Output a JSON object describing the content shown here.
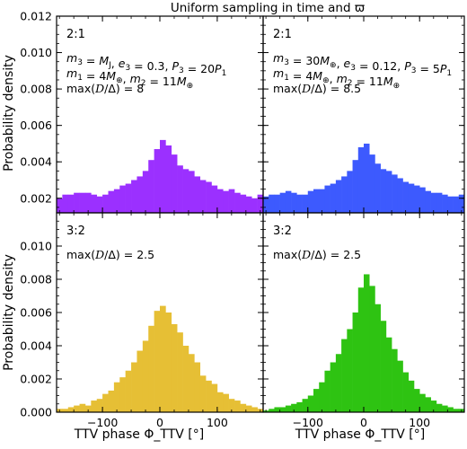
{
  "figure_title": "Uniform sampling in time and ϖ",
  "shared_ylabel": "Probability density",
  "shared_xlabel": "TTV phase Φ_TTV [°]",
  "bar_colors": {
    "purple": "#9b30ff",
    "blue": "#3d5afe",
    "gold": "#e6bf35",
    "green": "#2ec312"
  },
  "chart_data": [
    {
      "type": "bar",
      "panel": "top-left",
      "resonance": "2:1",
      "annotation_lines": [
        "m3 = MJ, e3 = 0.3, P3 = 20P1",
        "m1 = 4M⊕, m2 = 11M⊕",
        "max(D/Δ) = 8"
      ],
      "color": "#9b30ff",
      "bin_edges_deg": [
        -180,
        180
      ],
      "n_bins": 36,
      "values": [
        0.002,
        0.0022,
        0.0022,
        0.0023,
        0.0023,
        0.0023,
        0.0022,
        0.0021,
        0.0022,
        0.0024,
        0.0025,
        0.0027,
        0.0028,
        0.003,
        0.0032,
        0.0035,
        0.0041,
        0.0047,
        0.0052,
        0.0049,
        0.0044,
        0.0038,
        0.0036,
        0.0035,
        0.0032,
        0.003,
        0.0029,
        0.0027,
        0.0025,
        0.0024,
        0.0025,
        0.0023,
        0.0022,
        0.0021,
        0.002,
        0.0022
      ],
      "xlim": [
        -180,
        180
      ],
      "ylim": [
        0.0012,
        0.012
      ],
      "yticks": [
        0.002,
        0.004,
        0.006,
        0.008,
        0.01,
        0.012
      ],
      "ytick_labels": [
        "0.002",
        "0.004",
        "0.006",
        "0.008",
        "0.010",
        "0.012"
      ],
      "xticks": [
        -100,
        0,
        100
      ],
      "xtick_labels": []
    },
    {
      "type": "bar",
      "panel": "top-right",
      "resonance": "2:1",
      "annotation_lines": [
        "m3 = 30M⊕, e3 = 0.12, P3 = 5P1",
        "m1 = 4M⊕, m2 = 11M⊕",
        "max(D/Δ) = 8.5"
      ],
      "color": "#3d5afe",
      "bin_edges_deg": [
        -180,
        180
      ],
      "n_bins": 36,
      "values": [
        0.0021,
        0.0022,
        0.0022,
        0.0023,
        0.0024,
        0.0023,
        0.0022,
        0.0022,
        0.0024,
        0.0025,
        0.0025,
        0.0027,
        0.0028,
        0.003,
        0.0032,
        0.0035,
        0.0041,
        0.0048,
        0.005,
        0.0044,
        0.0039,
        0.0036,
        0.0035,
        0.0033,
        0.0031,
        0.0029,
        0.0028,
        0.0027,
        0.0026,
        0.0024,
        0.0023,
        0.0023,
        0.0022,
        0.0021,
        0.0021,
        0.0022
      ],
      "xlim": [
        -180,
        180
      ],
      "ylim": [
        0.0012,
        0.012
      ],
      "yticks": [
        0.002,
        0.004,
        0.006,
        0.008,
        0.01,
        0.012
      ],
      "ytick_labels": [],
      "xticks": [
        -100,
        0,
        100
      ],
      "xtick_labels": []
    },
    {
      "type": "bar",
      "panel": "bottom-left",
      "resonance": "3:2",
      "annotation_lines": [
        "max(D/Δ) = 2.5"
      ],
      "color": "#e6bf35",
      "bin_edges_deg": [
        -180,
        180
      ],
      "n_bins": 36,
      "values": [
        0.0002,
        0.0002,
        0.0003,
        0.0004,
        0.0005,
        0.0004,
        0.0007,
        0.0008,
        0.0011,
        0.0013,
        0.0018,
        0.0021,
        0.0025,
        0.003,
        0.0037,
        0.0043,
        0.0052,
        0.0061,
        0.0064,
        0.006,
        0.0053,
        0.0048,
        0.004,
        0.0035,
        0.003,
        0.0022,
        0.0019,
        0.0017,
        0.0012,
        0.0011,
        0.0008,
        0.0007,
        0.0005,
        0.0004,
        0.0003,
        0.0002
      ],
      "xlim": [
        -180,
        180
      ],
      "ylim": [
        0,
        0.012
      ],
      "yticks": [
        0.0,
        0.002,
        0.004,
        0.006,
        0.008,
        0.01
      ],
      "ytick_labels": [
        "0.000",
        "0.002",
        "0.004",
        "0.006",
        "0.008",
        "0.010"
      ],
      "xticks": [
        -100,
        0,
        100
      ],
      "xtick_labels": [
        "−100",
        "0",
        "100"
      ]
    },
    {
      "type": "bar",
      "panel": "bottom-right",
      "resonance": "3:2",
      "annotation_lines": [
        "max(D/Δ) = 2.5"
      ],
      "color": "#2ec312",
      "bin_edges_deg": [
        -180,
        180
      ],
      "n_bins": 36,
      "values": [
        0.0001,
        0.0002,
        0.0003,
        0.0003,
        0.0004,
        0.0005,
        0.0006,
        0.0008,
        0.001,
        0.0014,
        0.0018,
        0.0025,
        0.003,
        0.0035,
        0.0044,
        0.005,
        0.006,
        0.0075,
        0.0083,
        0.0076,
        0.0065,
        0.0055,
        0.0045,
        0.0038,
        0.0031,
        0.0024,
        0.0019,
        0.0014,
        0.0011,
        0.0009,
        0.0007,
        0.0005,
        0.0004,
        0.0003,
        0.0002,
        0.0002
      ],
      "xlim": [
        -180,
        180
      ],
      "ylim": [
        0,
        0.012
      ],
      "yticks": [
        0.0,
        0.002,
        0.004,
        0.006,
        0.008,
        0.01
      ],
      "ytick_labels": [],
      "xticks": [
        -100,
        0,
        100
      ],
      "xtick_labels": [
        "−100",
        "0",
        "100"
      ]
    }
  ]
}
